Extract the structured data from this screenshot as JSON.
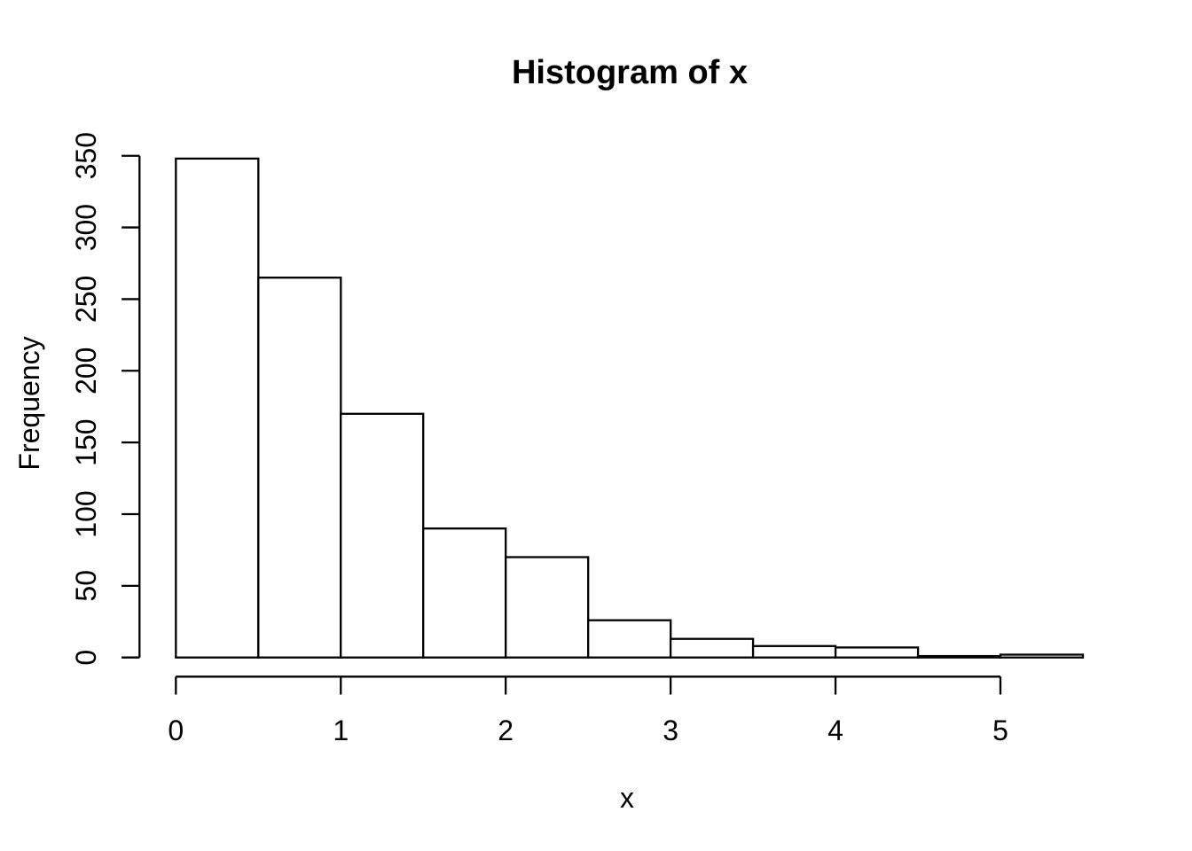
{
  "figure": {
    "background": "#ffffff",
    "foreground": "#000000"
  },
  "chart_data": {
    "type": "bar",
    "subtype": "histogram",
    "title": "Histogram of x",
    "xlabel": "x",
    "ylabel": "Frequency",
    "bin_edges": [
      0,
      0.5,
      1,
      1.5,
      2,
      2.5,
      3,
      3.5,
      4,
      4.5,
      5,
      5.5
    ],
    "counts": [
      348,
      265,
      170,
      90,
      70,
      26,
      13,
      8,
      7,
      1,
      2
    ],
    "x_ticks": [
      0,
      1,
      2,
      3,
      4,
      5
    ],
    "x_tick_labels": [
      "0",
      "1",
      "2",
      "3",
      "4",
      "5"
    ],
    "y_ticks": [
      0,
      50,
      100,
      150,
      200,
      250,
      300,
      350
    ],
    "y_tick_labels": [
      "0",
      "50",
      "100",
      "150",
      "200",
      "250",
      "300",
      "350"
    ],
    "xlim": [
      0,
      5.5
    ],
    "ylim": [
      0,
      350
    ],
    "grid": false,
    "legend": null,
    "bar_fill": "#ffffff",
    "bar_stroke": "#000000",
    "axis_color": "#000000"
  }
}
